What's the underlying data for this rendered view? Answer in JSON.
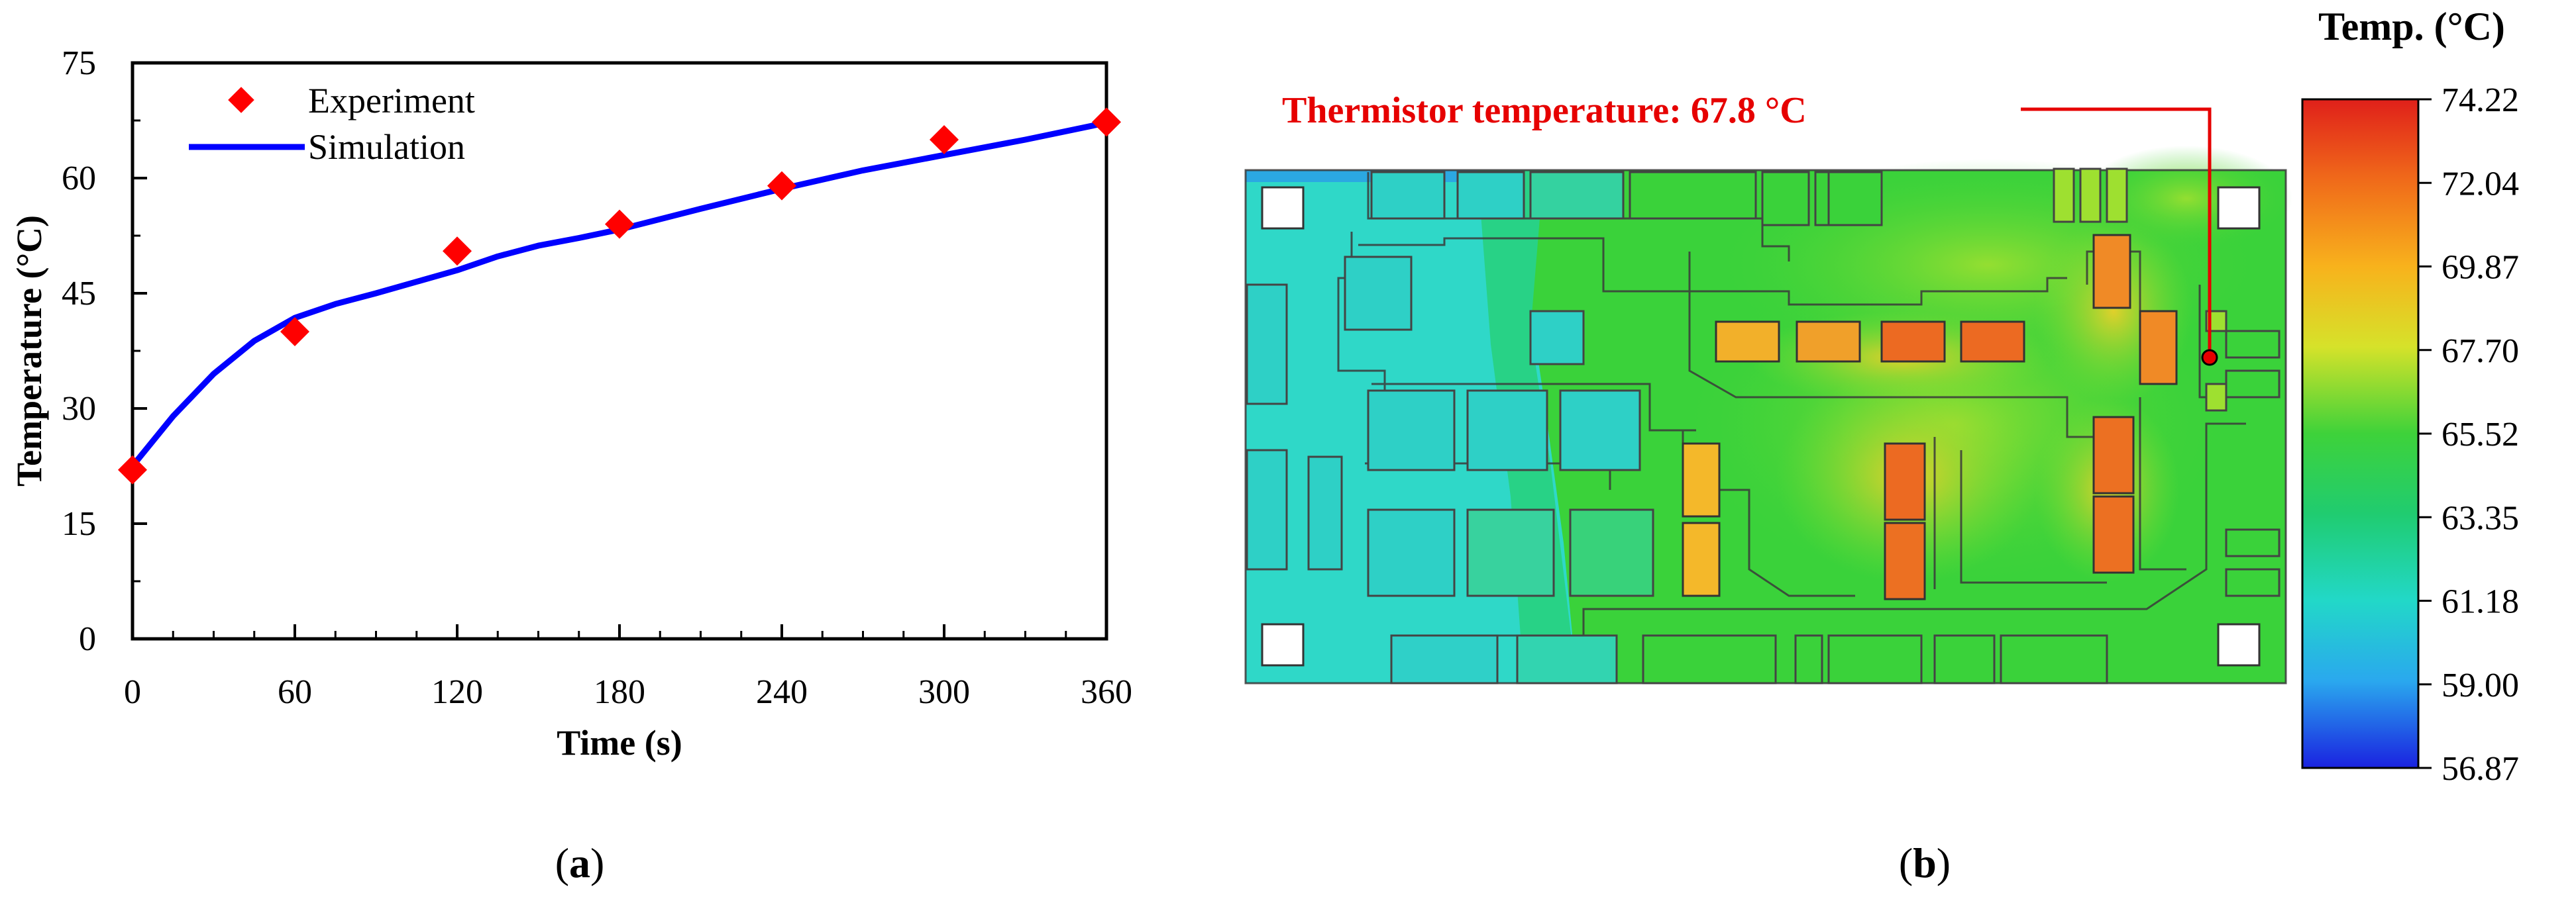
{
  "chart_data": [
    {
      "type": "line",
      "title": "",
      "xlabel": "Time (s)",
      "ylabel": "Temperature (°C)",
      "xlim": [
        0,
        360
      ],
      "ylim": [
        0,
        75
      ],
      "x_ticks": [
        "0",
        "60",
        "120",
        "180",
        "240",
        "300",
        "360"
      ],
      "y_ticks": [
        "0",
        "15",
        "30",
        "45",
        "60",
        "75"
      ],
      "grid": false,
      "legend_position": "top-left",
      "series": [
        {
          "name": "Experiment",
          "marker": "diamond",
          "color": "#ff0000",
          "x": [
            0,
            60,
            120,
            180,
            240,
            300,
            360
          ],
          "y": [
            22,
            40,
            50.5,
            54,
            59,
            65,
            67.3
          ]
        },
        {
          "name": "Simulation",
          "style": "line",
          "color": "#0000ff",
          "x": [
            0,
            15,
            30,
            45,
            60,
            75,
            90,
            105,
            120,
            135,
            150,
            165,
            180,
            210,
            240,
            270,
            300,
            330,
            360
          ],
          "y": [
            22.5,
            29,
            34.5,
            38.8,
            41.8,
            43.6,
            45,
            46.5,
            48,
            49.8,
            51.2,
            52.2,
            53.3,
            56,
            58.6,
            61,
            63,
            65,
            67.2
          ]
        }
      ],
      "panel_label": "a"
    },
    {
      "type": "heatmap",
      "panel_label": "b",
      "annotation": "Thermistor temperature: 67.8 °C",
      "colorbar": {
        "title": "Temp. (°C)",
        "ticks": [
          "74.22",
          "72.04",
          "69.87",
          "67.70",
          "65.52",
          "63.35",
          "61.18",
          "59.00",
          "56.87"
        ],
        "colors": [
          "#e8381a",
          "#f5a21a",
          "#d8e02a",
          "#3fd23a",
          "#1ec83c",
          "#22d6a8",
          "#2ad8e8",
          "#2a8ee6",
          "#1a2ee0"
        ]
      }
    }
  ],
  "colors": {
    "experiment": "#ff0000",
    "simulation": "#0000ff",
    "annotation": "#e60000"
  },
  "labels": {
    "panel_a": "(a)",
    "panel_b": "(b)"
  }
}
